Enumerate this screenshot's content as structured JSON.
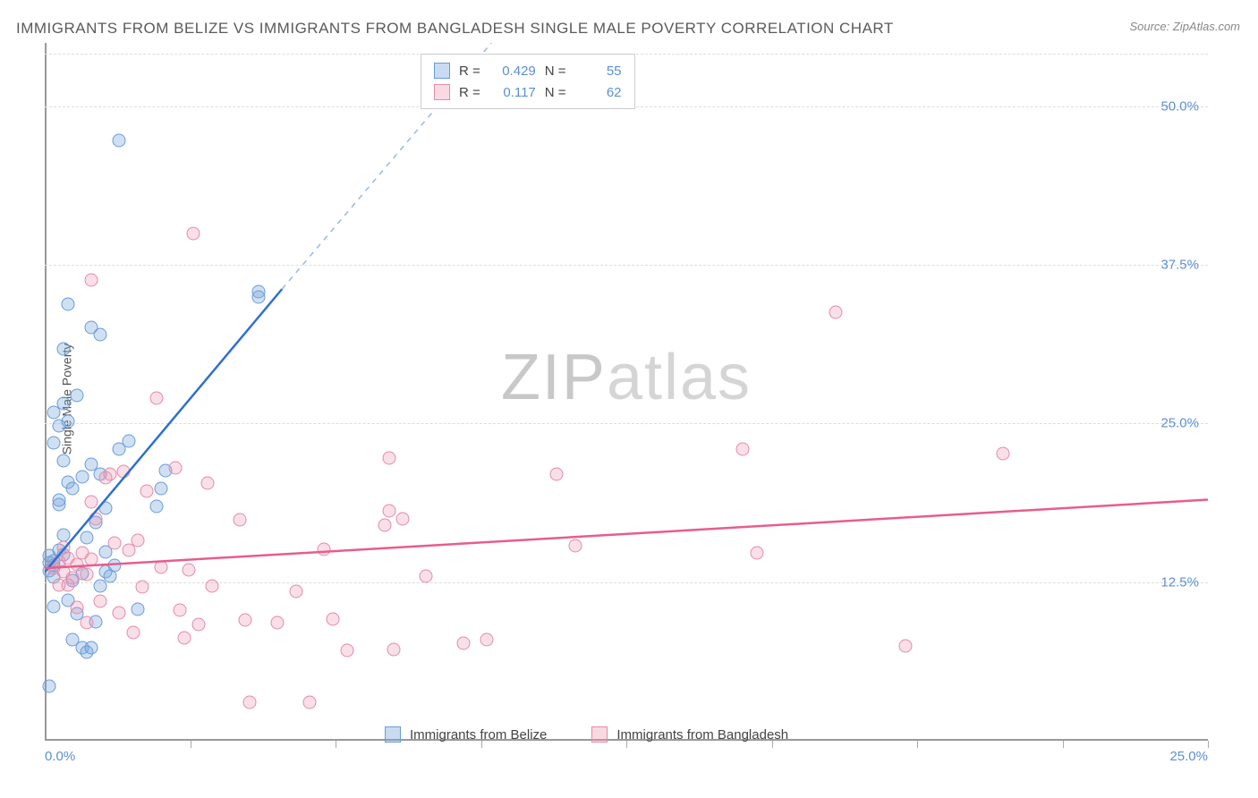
{
  "title": "IMMIGRANTS FROM BELIZE VS IMMIGRANTS FROM BANGLADESH SINGLE MALE POVERTY CORRELATION CHART",
  "source": "Source: ZipAtlas.com",
  "y_axis_label": "Single Male Poverty",
  "watermark_a": "ZIP",
  "watermark_b": "atlas",
  "chart": {
    "type": "scatter",
    "xlim": [
      0,
      25
    ],
    "ylim": [
      0,
      55
    ],
    "y_ticks": [
      12.5,
      25.0,
      37.5,
      50.0
    ],
    "y_tick_labels": [
      "12.5%",
      "25.0%",
      "37.5%",
      "50.0%"
    ],
    "x_ticks": [
      0,
      3.125,
      6.25,
      9.375,
      12.5,
      15.625,
      18.75,
      21.875,
      25
    ],
    "x_tick_left_label": "0.0%",
    "x_tick_right_label": "25.0%",
    "background_color": "#ffffff",
    "grid_color": "#dddddd",
    "axis_color": "#999999",
    "tick_label_color": "#5b8fd6",
    "series": [
      {
        "name": "Immigrants from Belize",
        "fill": "rgba(120,165,220,0.35)",
        "stroke": "#6a9bd8",
        "r_label": "R =",
        "r_value": "0.429",
        "n_label": "N =",
        "n_value": "55",
        "trend_color": "#2f6fd0",
        "trend_dash_color": "#9bb8e0",
        "trend_solid": {
          "x1": 0,
          "y1": 13.3,
          "x2": 5.1,
          "y2": 35.6
        },
        "trend_dash": {
          "x1": 5.1,
          "y1": 35.6,
          "x2": 9.6,
          "y2": 55
        },
        "points": [
          [
            0.1,
            14.0
          ],
          [
            0.1,
            14.6
          ],
          [
            0.1,
            13.4
          ],
          [
            0.2,
            13.8
          ],
          [
            0.3,
            15.0
          ],
          [
            0.2,
            14.2
          ],
          [
            0.2,
            12.9
          ],
          [
            0.4,
            16.2
          ],
          [
            0.3,
            18.6
          ],
          [
            0.5,
            20.4
          ],
          [
            0.4,
            22.1
          ],
          [
            0.2,
            23.5
          ],
          [
            0.3,
            24.8
          ],
          [
            0.5,
            25.2
          ],
          [
            0.2,
            25.9
          ],
          [
            0.4,
            26.6
          ],
          [
            0.7,
            27.2
          ],
          [
            0.3,
            19.0
          ],
          [
            0.6,
            19.9
          ],
          [
            0.8,
            20.8
          ],
          [
            0.4,
            30.9
          ],
          [
            1.0,
            32.6
          ],
          [
            1.2,
            32.0
          ],
          [
            1.6,
            47.3
          ],
          [
            0.5,
            34.4
          ],
          [
            0.2,
            10.6
          ],
          [
            0.5,
            11.1
          ],
          [
            0.7,
            10.0
          ],
          [
            0.8,
            7.3
          ],
          [
            0.9,
            7.0
          ],
          [
            1.0,
            7.3
          ],
          [
            1.2,
            12.2
          ],
          [
            1.3,
            13.3
          ],
          [
            1.5,
            13.8
          ],
          [
            1.1,
            9.4
          ],
          [
            1.4,
            13.0
          ],
          [
            1.6,
            23.0
          ],
          [
            1.8,
            23.6
          ],
          [
            1.3,
            14.9
          ],
          [
            2.0,
            10.4
          ],
          [
            2.4,
            18.5
          ],
          [
            2.5,
            19.9
          ],
          [
            2.6,
            21.3
          ],
          [
            0.9,
            16.0
          ],
          [
            1.1,
            17.2
          ],
          [
            1.3,
            18.3
          ],
          [
            0.6,
            12.6
          ],
          [
            0.8,
            13.2
          ],
          [
            4.6,
            35.4
          ],
          [
            4.6,
            35.0
          ],
          [
            0.1,
            4.3
          ],
          [
            0.6,
            8.0
          ],
          [
            1.0,
            21.8
          ],
          [
            1.2,
            21.0
          ],
          [
            0.4,
            14.7
          ]
        ]
      },
      {
        "name": "Immigrants from Bangladesh",
        "fill": "rgba(235,150,175,0.3)",
        "stroke": "#e58aa8",
        "r_label": "R =",
        "r_value": "0.117",
        "n_label": "N =",
        "n_value": "62",
        "trend_color": "#e85d8a",
        "trend_solid": {
          "x1": 0,
          "y1": 13.6,
          "x2": 25,
          "y2": 19.0
        },
        "points": [
          [
            0.2,
            13.6
          ],
          [
            0.3,
            14.1
          ],
          [
            0.4,
            13.3
          ],
          [
            0.5,
            14.4
          ],
          [
            0.4,
            15.2
          ],
          [
            0.6,
            12.8
          ],
          [
            0.7,
            13.9
          ],
          [
            0.5,
            12.3
          ],
          [
            0.8,
            14.8
          ],
          [
            0.9,
            13.1
          ],
          [
            1.0,
            14.3
          ],
          [
            0.3,
            12.3
          ],
          [
            1.1,
            17.5
          ],
          [
            1.0,
            18.8
          ],
          [
            1.3,
            20.7
          ],
          [
            1.4,
            21.0
          ],
          [
            1.7,
            21.2
          ],
          [
            1.5,
            15.6
          ],
          [
            1.8,
            15.0
          ],
          [
            2.0,
            15.8
          ],
          [
            2.2,
            19.7
          ],
          [
            2.4,
            27.0
          ],
          [
            3.2,
            40.0
          ],
          [
            1.0,
            36.3
          ],
          [
            2.8,
            21.5
          ],
          [
            2.9,
            10.3
          ],
          [
            3.0,
            8.1
          ],
          [
            3.3,
            9.2
          ],
          [
            3.5,
            20.3
          ],
          [
            3.6,
            12.2
          ],
          [
            4.2,
            17.4
          ],
          [
            4.3,
            9.5
          ],
          [
            4.4,
            3.0
          ],
          [
            5.0,
            9.3
          ],
          [
            5.4,
            11.8
          ],
          [
            5.7,
            3.0
          ],
          [
            6.0,
            15.1
          ],
          [
            6.2,
            9.6
          ],
          [
            6.5,
            7.1
          ],
          [
            7.3,
            17.0
          ],
          [
            7.4,
            22.3
          ],
          [
            7.4,
            18.1
          ],
          [
            7.5,
            7.2
          ],
          [
            7.7,
            17.5
          ],
          [
            8.2,
            13.0
          ],
          [
            9.0,
            7.7
          ],
          [
            9.5,
            8.0
          ],
          [
            11.0,
            21.0
          ],
          [
            11.4,
            15.4
          ],
          [
            15.0,
            23.0
          ],
          [
            15.3,
            14.8
          ],
          [
            17.0,
            33.8
          ],
          [
            18.5,
            7.5
          ],
          [
            20.6,
            22.6
          ],
          [
            1.2,
            11.0
          ],
          [
            1.6,
            10.1
          ],
          [
            2.1,
            12.1
          ],
          [
            2.5,
            13.7
          ],
          [
            0.9,
            9.3
          ],
          [
            0.7,
            10.5
          ],
          [
            1.9,
            8.5
          ],
          [
            3.1,
            13.5
          ]
        ]
      }
    ]
  },
  "rn_legend_swatch1_fill": "rgba(120,165,220,0.4)",
  "rn_legend_swatch1_border": "#6a9bd8",
  "rn_legend_swatch2_fill": "rgba(235,150,175,0.35)",
  "rn_legend_swatch2_border": "#e58aa8"
}
